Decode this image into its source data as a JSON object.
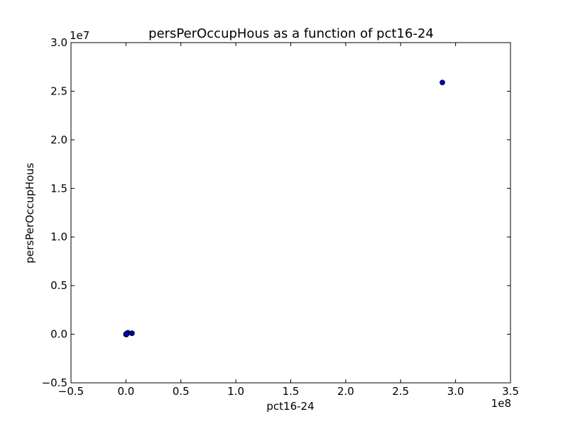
{
  "chart_data": {
    "type": "scatter",
    "title": "persPerOccupHous as a function of pct16-24",
    "xlabel": "pct16-24",
    "ylabel": "persPerOccupHous",
    "xlim": [
      -50000000,
      350000000
    ],
    "ylim": [
      -5000000,
      30000000
    ],
    "x_offset_label": "1e8",
    "y_offset_label": "1e7",
    "xticks": [
      {
        "value": -50000000,
        "label": "−0.5"
      },
      {
        "value": 0,
        "label": "0.0"
      },
      {
        "value": 50000000,
        "label": "0.5"
      },
      {
        "value": 100000000,
        "label": "1.0"
      },
      {
        "value": 150000000,
        "label": "1.5"
      },
      {
        "value": 200000000,
        "label": "2.0"
      },
      {
        "value": 250000000,
        "label": "2.5"
      },
      {
        "value": 300000000,
        "label": "3.0"
      },
      {
        "value": 350000000,
        "label": "3.5"
      }
    ],
    "yticks": [
      {
        "value": -5000000,
        "label": "−0.5"
      },
      {
        "value": 0,
        "label": "0.0"
      },
      {
        "value": 5000000,
        "label": "0.5"
      },
      {
        "value": 10000000,
        "label": "1.0"
      },
      {
        "value": 15000000,
        "label": "1.5"
      },
      {
        "value": 20000000,
        "label": "2.0"
      },
      {
        "value": 25000000,
        "label": "2.5"
      },
      {
        "value": 30000000,
        "label": "3.0"
      }
    ],
    "grid": false,
    "marker_color": "#0000bf",
    "marker_edge_color": "#000000",
    "points": [
      {
        "x": 0,
        "y": 0
      },
      {
        "x": 200000,
        "y": 20000
      },
      {
        "x": 500000,
        "y": 50000
      },
      {
        "x": 900000,
        "y": 80000
      },
      {
        "x": 1300000,
        "y": 110000
      },
      {
        "x": 1800000,
        "y": 150000
      },
      {
        "x": 300000,
        "y": -30000
      },
      {
        "x": 700000,
        "y": 30000
      },
      {
        "x": 5500000,
        "y": 100000
      },
      {
        "x": 288000000,
        "y": 25900000
      }
    ]
  }
}
